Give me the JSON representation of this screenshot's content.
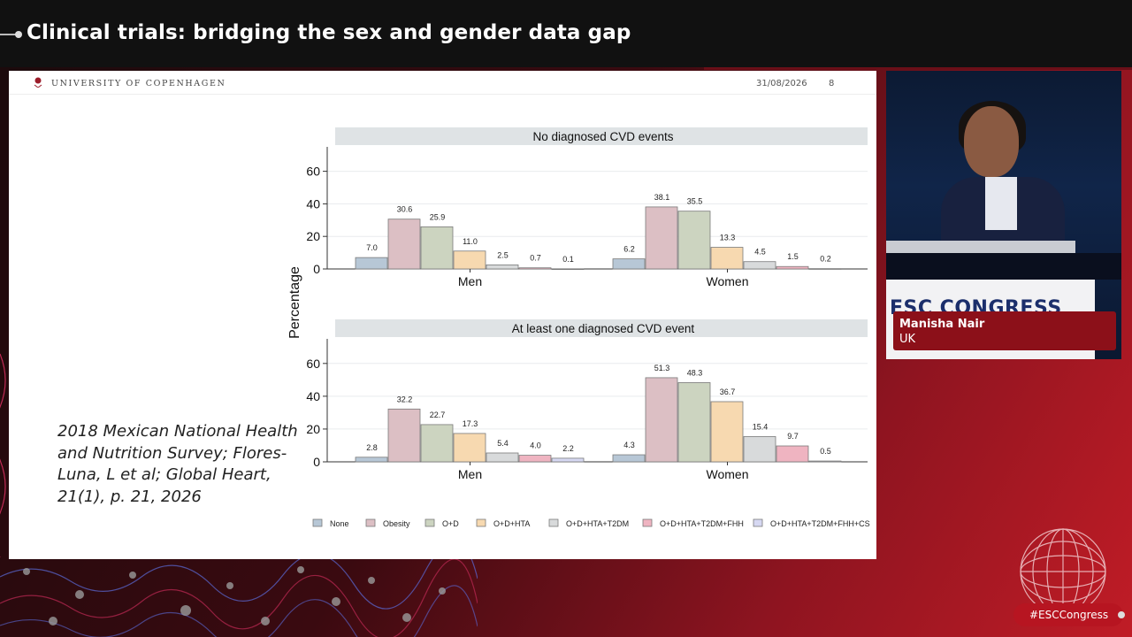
{
  "session": {
    "title": "Clinical trials: bridging the sex and gender data gap"
  },
  "slide": {
    "institution": "UNIVERSITY OF COPENHAGEN",
    "date": "31/08/2026",
    "page_number": "8",
    "citation": "2018 Mexican National Health and Nutrition Survey; Flores-Luna, L et al; Global Heart, 21(1), p. 21, 2026"
  },
  "speaker": {
    "name": "Manisha Nair",
    "country": "UK",
    "backdrop_text": "ESC CONGRESS"
  },
  "hashtag": "#ESCCongress",
  "colors": {
    "None": "#b7c7d6",
    "Obesity": "#dcbfc4",
    "O+D": "#ccd4c0",
    "O+D+HTA": "#f7d9b0",
    "O+D+HTA+T2DM": "#d8dadb",
    "O+D+HTA+T2DM+FHH": "#efb4c1",
    "O+D+HTA+T2DM+FHH+CS": "#d6d8f2"
  },
  "chart_data": {
    "type": "bar",
    "ylabel": "Percentage",
    "ylim": [
      0,
      75
    ],
    "yticks": [
      0,
      20,
      40,
      60
    ],
    "categories": [
      "Men",
      "Women"
    ],
    "legend": [
      "None",
      "Obesity",
      "O+D",
      "O+D+HTA",
      "O+D+HTA+T2DM",
      "O+D+HTA+T2DM+FHH",
      "O+D+HTA+T2DM+FHH+CS"
    ],
    "legend_position": "bottom",
    "panels": [
      {
        "title": "No diagnosed CVD events",
        "series": [
          {
            "name": "None",
            "values": [
              7.0,
              6.2
            ]
          },
          {
            "name": "Obesity",
            "values": [
              30.6,
              38.1
            ]
          },
          {
            "name": "O+D",
            "values": [
              25.9,
              35.5
            ]
          },
          {
            "name": "O+D+HTA",
            "values": [
              11.0,
              13.3
            ]
          },
          {
            "name": "O+D+HTA+T2DM",
            "values": [
              2.5,
              4.5
            ]
          },
          {
            "name": "O+D+HTA+T2DM+FHH",
            "values": [
              0.7,
              1.5
            ]
          },
          {
            "name": "O+D+HTA+T2DM+FHH+CS",
            "values": [
              0.1,
              0.2
            ]
          }
        ]
      },
      {
        "title": "At least one diagnosed CVD event",
        "series": [
          {
            "name": "None",
            "values": [
              2.8,
              4.3
            ]
          },
          {
            "name": "Obesity",
            "values": [
              32.2,
              51.3
            ]
          },
          {
            "name": "O+D",
            "values": [
              22.7,
              48.3
            ]
          },
          {
            "name": "O+D+HTA",
            "values": [
              17.3,
              36.7
            ]
          },
          {
            "name": "O+D+HTA+T2DM",
            "values": [
              5.4,
              15.4
            ]
          },
          {
            "name": "O+D+HTA+T2DM+FHH",
            "values": [
              4.0,
              9.7
            ]
          },
          {
            "name": "O+D+HTA+T2DM+FHH+CS",
            "values": [
              2.2,
              0.5
            ]
          }
        ]
      }
    ]
  }
}
